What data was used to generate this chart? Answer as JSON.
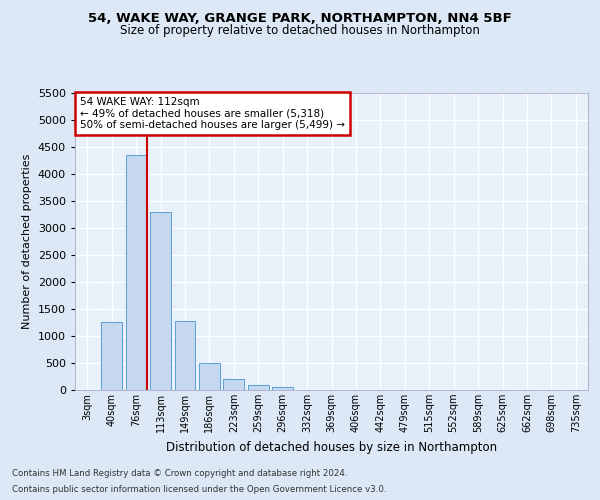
{
  "title1": "54, WAKE WAY, GRANGE PARK, NORTHAMPTON, NN4 5BF",
  "title2": "Size of property relative to detached houses in Northampton",
  "xlabel": "Distribution of detached houses by size in Northampton",
  "ylabel": "Number of detached properties",
  "categories": [
    "3sqm",
    "40sqm",
    "76sqm",
    "113sqm",
    "149sqm",
    "186sqm",
    "223sqm",
    "259sqm",
    "296sqm",
    "332sqm",
    "369sqm",
    "406sqm",
    "442sqm",
    "479sqm",
    "515sqm",
    "552sqm",
    "589sqm",
    "625sqm",
    "662sqm",
    "698sqm",
    "735sqm"
  ],
  "bar_values": [
    0,
    1260,
    4340,
    3300,
    1280,
    490,
    210,
    95,
    60,
    0,
    0,
    0,
    0,
    0,
    0,
    0,
    0,
    0,
    0,
    0,
    0
  ],
  "bar_color": "#c5d8f0",
  "bar_edge_color": "#5a9fd4",
  "vline_x": 2.45,
  "annotation_text": "54 WAKE WAY: 112sqm\n← 49% of detached houses are smaller (5,318)\n50% of semi-detached houses are larger (5,499) →",
  "annotation_box_color": "#ffffff",
  "annotation_box_edge": "#cc0000",
  "vline_color": "#cc0000",
  "footnote1": "Contains HM Land Registry data © Crown copyright and database right 2024.",
  "footnote2": "Contains public sector information licensed under the Open Government Licence v3.0.",
  "bg_color": "#dce8f5",
  "plot_bg_color": "#e8f1fa",
  "ylim": [
    0,
    5500
  ],
  "yticks": [
    0,
    500,
    1000,
    1500,
    2000,
    2500,
    3000,
    3500,
    4000,
    4500,
    5000,
    5500
  ]
}
